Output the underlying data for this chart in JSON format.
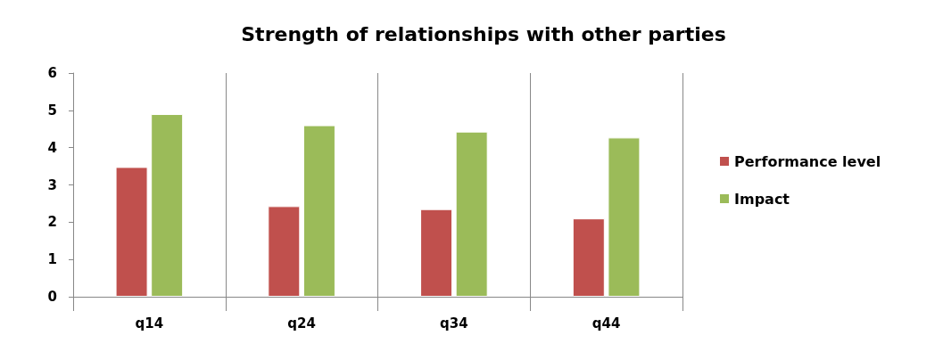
{
  "chart_data": {
    "type": "bar",
    "title": "Strength of relationships with other parties",
    "categories": [
      "q14",
      "q24",
      "q34",
      "q44"
    ],
    "series": [
      {
        "name": "Performance level",
        "color": "#c0504d",
        "values": [
          3.48,
          2.43,
          2.35,
          2.1
        ]
      },
      {
        "name": "Impact",
        "color": "#9bbb59",
        "values": [
          4.9,
          4.6,
          4.43,
          4.27
        ]
      }
    ],
    "ylim": [
      0,
      6
    ],
    "yticks": [
      0,
      1,
      2,
      3,
      4,
      5,
      6
    ],
    "grid": "x",
    "legend": "right"
  }
}
